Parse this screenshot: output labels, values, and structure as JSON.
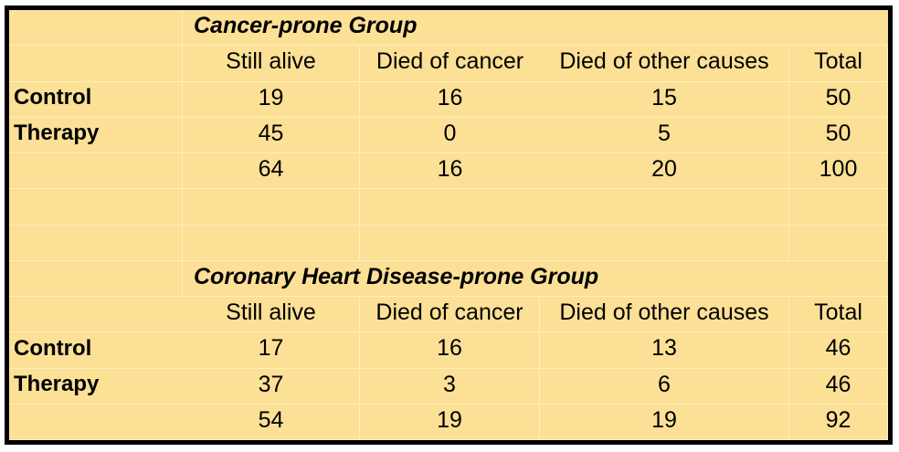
{
  "theme": {
    "sheet_fill": "#FCE096",
    "gridline_color": "#FFEFBC",
    "border_color": "#000000",
    "text_color": "#000000",
    "page_background": "#FFFFFF"
  },
  "tables": [
    {
      "title": "Cancer-prone Group",
      "columns": [
        "Still alive",
        "Died of cancer",
        "Died of other causes",
        "Total"
      ],
      "rows": [
        {
          "label": "Control",
          "values": [
            "19",
            "16",
            "15",
            "50"
          ]
        },
        {
          "label": "Therapy",
          "values": [
            "45",
            "0",
            "5",
            "50"
          ]
        },
        {
          "label": "",
          "values": [
            "64",
            "16",
            "20",
            "100"
          ]
        }
      ]
    },
    {
      "title": "Coronary Heart Disease-prone Group",
      "columns": [
        "Still alive",
        "Died of cancer",
        "Died of other causes",
        "Total"
      ],
      "rows": [
        {
          "label": "Control",
          "values": [
            "17",
            "16",
            "13",
            "46"
          ]
        },
        {
          "label": "Therapy",
          "values": [
            "37",
            "3",
            "6",
            "46"
          ]
        },
        {
          "label": "",
          "values": [
            "54",
            "19",
            "19",
            "92"
          ]
        }
      ]
    }
  ],
  "chart_data": [
    {
      "type": "table",
      "title": "Cancer-prone Group",
      "columns": [
        "",
        "Still alive",
        "Died of cancer",
        "Died of other causes",
        "Total"
      ],
      "rows": [
        [
          "Control",
          19,
          16,
          15,
          50
        ],
        [
          "Therapy",
          45,
          0,
          5,
          50
        ],
        [
          "",
          64,
          16,
          20,
          100
        ]
      ]
    },
    {
      "type": "table",
      "title": "Coronary Heart Disease-prone Group",
      "columns": [
        "",
        "Still alive",
        "Died of cancer",
        "Died of other causes",
        "Total"
      ],
      "rows": [
        [
          "Control",
          17,
          16,
          13,
          46
        ],
        [
          "Therapy",
          37,
          3,
          6,
          46
        ],
        [
          "",
          54,
          19,
          19,
          92
        ]
      ]
    }
  ]
}
